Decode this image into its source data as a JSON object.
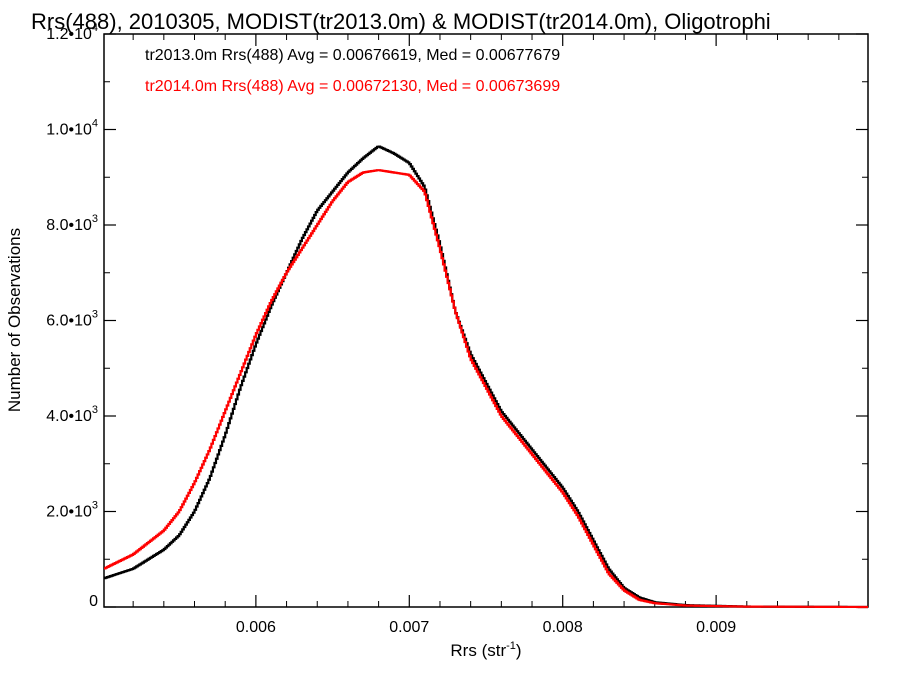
{
  "chart_data": {
    "type": "line",
    "title": "Rrs(488), 2010305, MODIST(tr2013.0m) & MODIST(tr2014.0m), Oligotrophi",
    "xlabel": "Rrs (str",
    "xlabel_sup": "-1",
    "xlabel_end": ")",
    "ylabel": "Number of Observations",
    "xlim": [
      0.00501,
      0.00999
    ],
    "ylim": [
      0,
      12000
    ],
    "grid": false,
    "legend_placement": "top-left",
    "x_ticks": [
      {
        "value": 0.006,
        "label": "0.006"
      },
      {
        "value": 0.007,
        "label": "0.007"
      },
      {
        "value": 0.008,
        "label": "0.008"
      },
      {
        "value": 0.009,
        "label": "0.009"
      }
    ],
    "y_ticks": [
      {
        "value": 0,
        "mant": "0",
        "exp": ""
      },
      {
        "value": 2000,
        "mant": "2.0•10",
        "exp": "3"
      },
      {
        "value": 4000,
        "mant": "4.0•10",
        "exp": "3"
      },
      {
        "value": 6000,
        "mant": "6.0•10",
        "exp": "3"
      },
      {
        "value": 8000,
        "mant": "8.0•10",
        "exp": "3"
      },
      {
        "value": 10000,
        "mant": "1.0•10",
        "exp": "4"
      },
      {
        "value": 12000,
        "mant": "1.2•10",
        "exp": "4"
      }
    ],
    "series": [
      {
        "name": "tr2013.0m",
        "legend_text": "tr2013.0m Rrs(488) Avg = 0.00676619, Med = 0.00677679",
        "color": "#000000",
        "points": [
          [
            0.00501,
            600
          ],
          [
            0.0052,
            800
          ],
          [
            0.0054,
            1200
          ],
          [
            0.0055,
            1500
          ],
          [
            0.0056,
            2000
          ],
          [
            0.0057,
            2700
          ],
          [
            0.0058,
            3600
          ],
          [
            0.0059,
            4600
          ],
          [
            0.006,
            5500
          ],
          [
            0.0061,
            6300
          ],
          [
            0.0062,
            7000
          ],
          [
            0.0063,
            7700
          ],
          [
            0.0064,
            8300
          ],
          [
            0.0065,
            8700
          ],
          [
            0.0066,
            9100
          ],
          [
            0.0067,
            9400
          ],
          [
            0.0068,
            9650
          ],
          [
            0.0069,
            9500
          ],
          [
            0.007,
            9300
          ],
          [
            0.0071,
            8800
          ],
          [
            0.0072,
            7600
          ],
          [
            0.0073,
            6200
          ],
          [
            0.0074,
            5300
          ],
          [
            0.0075,
            4700
          ],
          [
            0.0076,
            4100
          ],
          [
            0.0077,
            3700
          ],
          [
            0.0078,
            3300
          ],
          [
            0.0079,
            2900
          ],
          [
            0.008,
            2500
          ],
          [
            0.0081,
            2000
          ],
          [
            0.0082,
            1400
          ],
          [
            0.0083,
            800
          ],
          [
            0.0084,
            400
          ],
          [
            0.0085,
            200
          ],
          [
            0.0086,
            100
          ],
          [
            0.0088,
            40
          ],
          [
            0.0092,
            10
          ],
          [
            0.00999,
            0
          ]
        ]
      },
      {
        "name": "tr2014.0m",
        "legend_text": "tr2014.0m Rrs(488) Avg = 0.00672130, Med = 0.00673699",
        "color": "#ff0000",
        "points": [
          [
            0.00501,
            800
          ],
          [
            0.0052,
            1100
          ],
          [
            0.0054,
            1600
          ],
          [
            0.0055,
            2000
          ],
          [
            0.0056,
            2600
          ],
          [
            0.0057,
            3300
          ],
          [
            0.0058,
            4100
          ],
          [
            0.0059,
            4900
          ],
          [
            0.006,
            5700
          ],
          [
            0.0061,
            6400
          ],
          [
            0.0062,
            7000
          ],
          [
            0.0063,
            7500
          ],
          [
            0.0064,
            8000
          ],
          [
            0.0065,
            8500
          ],
          [
            0.0066,
            8900
          ],
          [
            0.0067,
            9100
          ],
          [
            0.0068,
            9150
          ],
          [
            0.0069,
            9100
          ],
          [
            0.007,
            9050
          ],
          [
            0.0071,
            8700
          ],
          [
            0.0072,
            7500
          ],
          [
            0.0073,
            6200
          ],
          [
            0.0074,
            5200
          ],
          [
            0.0075,
            4600
          ],
          [
            0.0076,
            4000
          ],
          [
            0.0077,
            3600
          ],
          [
            0.0078,
            3200
          ],
          [
            0.0079,
            2800
          ],
          [
            0.008,
            2400
          ],
          [
            0.0081,
            1900
          ],
          [
            0.0082,
            1300
          ],
          [
            0.0083,
            700
          ],
          [
            0.0084,
            350
          ],
          [
            0.0085,
            150
          ],
          [
            0.0086,
            80
          ],
          [
            0.0088,
            30
          ],
          [
            0.0092,
            8
          ],
          [
            0.00999,
            0
          ]
        ]
      }
    ]
  }
}
